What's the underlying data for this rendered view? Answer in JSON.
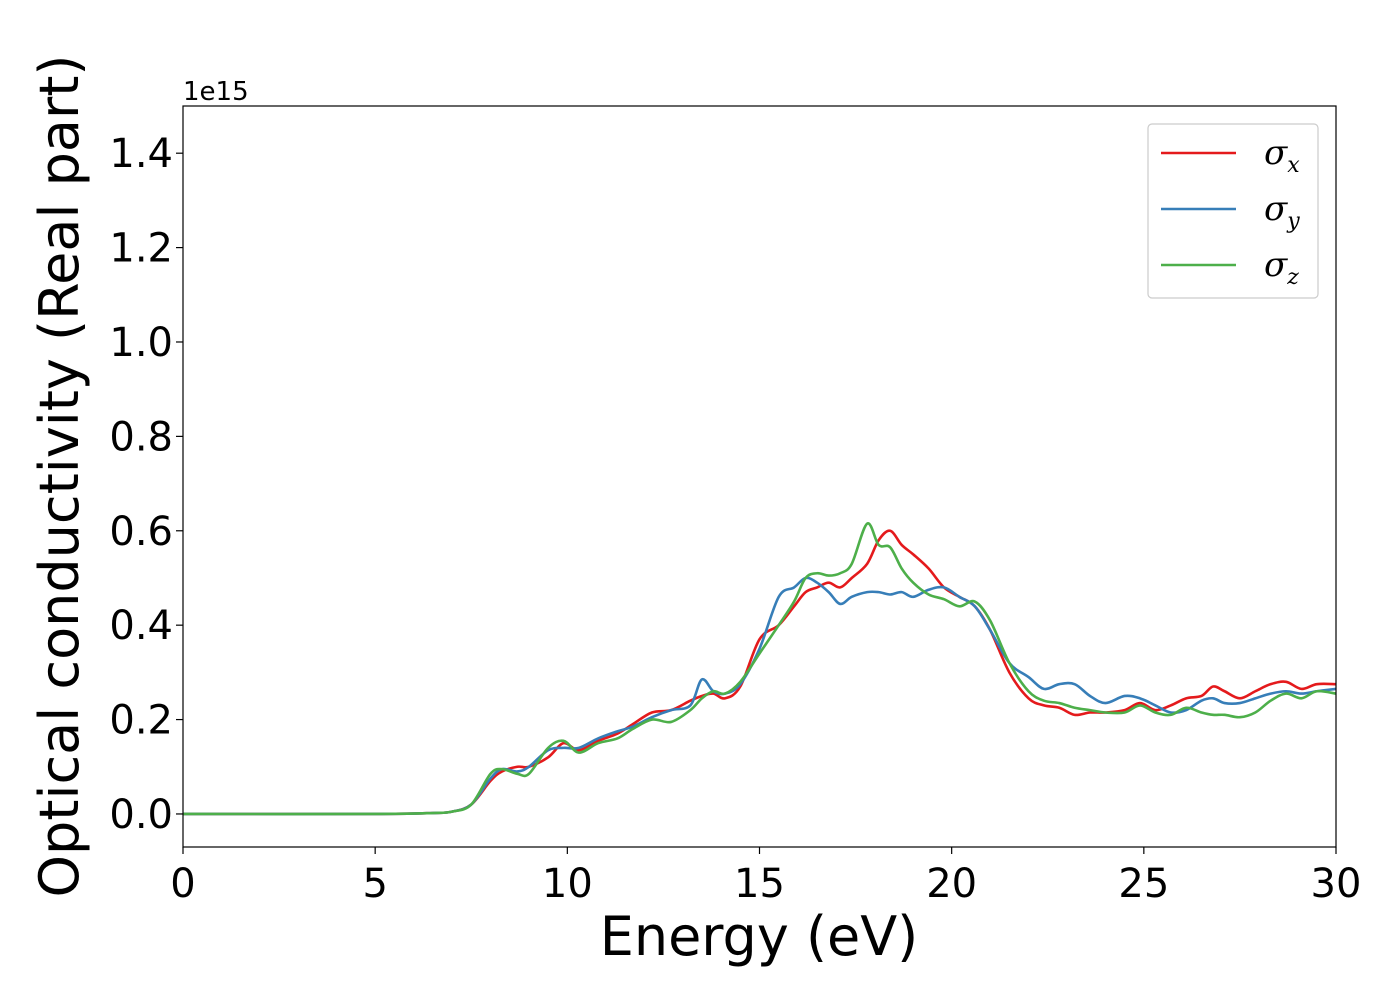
{
  "chart_data": {
    "type": "line",
    "xlabel": "Energy (eV)",
    "ylabel": "Optical conductivity (Real part)",
    "y_offset_label": "1e15",
    "xlim": [
      0,
      30
    ],
    "ylim": [
      -0.07,
      1.5
    ],
    "x_ticks": [
      0,
      5,
      10,
      15,
      20,
      25,
      30
    ],
    "x_tick_labels": [
      "0",
      "5",
      "10",
      "15",
      "20",
      "25",
      "30"
    ],
    "y_ticks": [
      0.0,
      0.2,
      0.4,
      0.6,
      0.8,
      1.0,
      1.2,
      1.4
    ],
    "y_tick_labels": [
      "0.0",
      "0.2",
      "0.4",
      "0.6",
      "0.8",
      "1.0",
      "1.2",
      "1.4"
    ],
    "grid": false,
    "legend_position": "top-right",
    "series": [
      {
        "name": "σx",
        "legend_base": "σ",
        "legend_sub": "x",
        "color": "#e41a1c",
        "x": [
          0,
          5,
          6.5,
          7,
          7.5,
          8,
          8.3,
          8.7,
          9.0,
          9.5,
          9.9,
          10.3,
          10.8,
          11.3,
          11.7,
          12.2,
          12.7,
          13.2,
          13.5,
          13.8,
          14.1,
          14.5,
          15.0,
          15.5,
          15.9,
          16.2,
          16.5,
          16.8,
          17.1,
          17.4,
          17.8,
          18.1,
          18.4,
          18.7,
          19.0,
          19.4,
          19.8,
          20.2,
          20.6,
          21.0,
          21.5,
          22.0,
          22.4,
          22.8,
          23.2,
          23.6,
          24.0,
          24.5,
          24.9,
          25.3,
          25.7,
          26.1,
          26.5,
          26.8,
          27.1,
          27.5,
          27.9,
          28.3,
          28.7,
          29.1,
          29.5,
          30.0
        ],
        "y": [
          0,
          0,
          0.002,
          0.005,
          0.02,
          0.07,
          0.09,
          0.1,
          0.1,
          0.12,
          0.15,
          0.135,
          0.155,
          0.17,
          0.19,
          0.215,
          0.22,
          0.24,
          0.25,
          0.255,
          0.245,
          0.27,
          0.37,
          0.4,
          0.44,
          0.47,
          0.48,
          0.49,
          0.48,
          0.5,
          0.53,
          0.58,
          0.6,
          0.57,
          0.55,
          0.52,
          0.48,
          0.46,
          0.44,
          0.39,
          0.3,
          0.245,
          0.23,
          0.225,
          0.21,
          0.215,
          0.215,
          0.22,
          0.235,
          0.22,
          0.23,
          0.245,
          0.25,
          0.27,
          0.26,
          0.245,
          0.26,
          0.275,
          0.28,
          0.265,
          0.275,
          0.275
        ]
      },
      {
        "name": "σy",
        "legend_base": "σ",
        "legend_sub": "y",
        "color": "#377eb8",
        "x": [
          0,
          5,
          6.5,
          7,
          7.5,
          8,
          8.3,
          8.7,
          9.0,
          9.5,
          9.9,
          10.3,
          10.8,
          11.3,
          11.7,
          12.2,
          12.7,
          13.2,
          13.5,
          13.8,
          14.1,
          14.5,
          15.0,
          15.5,
          15.9,
          16.2,
          16.5,
          16.8,
          17.1,
          17.4,
          17.8,
          18.1,
          18.4,
          18.7,
          19.0,
          19.4,
          19.8,
          20.2,
          20.6,
          21.0,
          21.5,
          22.0,
          22.4,
          22.8,
          23.2,
          23.6,
          24.0,
          24.5,
          24.9,
          25.3,
          25.7,
          26.1,
          26.5,
          26.8,
          27.1,
          27.5,
          27.9,
          28.3,
          28.7,
          29.1,
          29.5,
          30.0
        ],
        "y": [
          0,
          0,
          0.002,
          0.005,
          0.02,
          0.075,
          0.095,
          0.09,
          0.1,
          0.135,
          0.14,
          0.14,
          0.16,
          0.175,
          0.185,
          0.205,
          0.22,
          0.23,
          0.285,
          0.26,
          0.255,
          0.275,
          0.35,
          0.46,
          0.48,
          0.5,
          0.49,
          0.47,
          0.445,
          0.46,
          0.47,
          0.47,
          0.465,
          0.47,
          0.46,
          0.475,
          0.48,
          0.46,
          0.44,
          0.39,
          0.32,
          0.29,
          0.265,
          0.275,
          0.275,
          0.25,
          0.235,
          0.25,
          0.245,
          0.23,
          0.215,
          0.22,
          0.24,
          0.245,
          0.235,
          0.235,
          0.245,
          0.255,
          0.26,
          0.255,
          0.26,
          0.265
        ]
      },
      {
        "name": "σz",
        "legend_base": "σ",
        "legend_sub": "z",
        "color": "#4daf4a",
        "x": [
          0,
          5,
          6.5,
          7,
          7.5,
          8,
          8.3,
          8.7,
          9.0,
          9.5,
          9.9,
          10.3,
          10.8,
          11.3,
          11.7,
          12.2,
          12.7,
          13.2,
          13.5,
          13.8,
          14.1,
          14.5,
          15.0,
          15.5,
          15.9,
          16.2,
          16.5,
          16.8,
          17.1,
          17.4,
          17.8,
          18.1,
          18.4,
          18.7,
          19.0,
          19.4,
          19.8,
          20.2,
          20.6,
          21.0,
          21.5,
          22.0,
          22.4,
          22.8,
          23.2,
          23.6,
          24.0,
          24.5,
          24.9,
          25.3,
          25.7,
          26.1,
          26.5,
          26.8,
          27.1,
          27.5,
          27.9,
          28.3,
          28.7,
          29.1,
          29.5,
          30.0
        ],
        "y": [
          0,
          0,
          0.002,
          0.005,
          0.02,
          0.085,
          0.095,
          0.085,
          0.085,
          0.14,
          0.155,
          0.13,
          0.15,
          0.16,
          0.18,
          0.2,
          0.195,
          0.22,
          0.245,
          0.26,
          0.255,
          0.28,
          0.34,
          0.4,
          0.45,
          0.5,
          0.51,
          0.505,
          0.51,
          0.53,
          0.615,
          0.57,
          0.565,
          0.52,
          0.49,
          0.465,
          0.455,
          0.44,
          0.45,
          0.41,
          0.32,
          0.26,
          0.24,
          0.235,
          0.225,
          0.22,
          0.215,
          0.215,
          0.23,
          0.215,
          0.21,
          0.225,
          0.215,
          0.21,
          0.21,
          0.205,
          0.215,
          0.24,
          0.255,
          0.245,
          0.26,
          0.255
        ]
      }
    ]
  }
}
